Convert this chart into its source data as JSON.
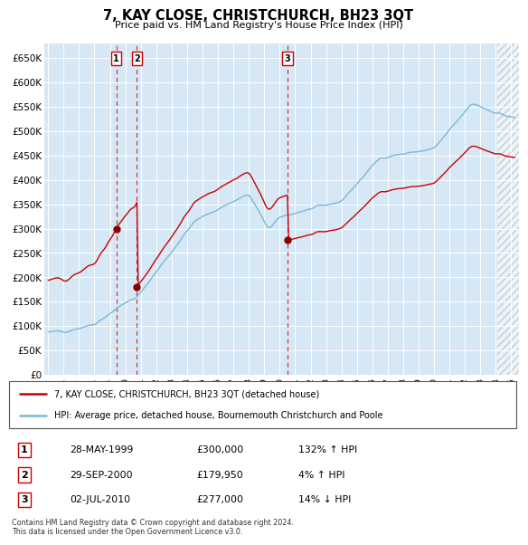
{
  "title": "7, KAY CLOSE, CHRISTCHURCH, BH23 3QT",
  "subtitle": "Price paid vs. HM Land Registry's House Price Index (HPI)",
  "ylabel_ticks": [
    "£0",
    "£50K",
    "£100K",
    "£150K",
    "£200K",
    "£250K",
    "£300K",
    "£350K",
    "£400K",
    "£450K",
    "£500K",
    "£550K",
    "£600K",
    "£650K"
  ],
  "ytick_values": [
    0,
    50000,
    100000,
    150000,
    200000,
    250000,
    300000,
    350000,
    400000,
    450000,
    500000,
    550000,
    600000,
    650000
  ],
  "xmin": 1994.75,
  "xmax": 2025.5,
  "ymin": 0,
  "ymax": 680000,
  "sale_dates": [
    1999.41,
    2000.75,
    2010.5
  ],
  "sale_prices": [
    300000,
    179950,
    277000
  ],
  "sale_labels": [
    "1",
    "2",
    "3"
  ],
  "legend_line1": "7, KAY CLOSE, CHRISTCHURCH, BH23 3QT (detached house)",
  "legend_line2": "HPI: Average price, detached house, Bournemouth Christchurch and Poole",
  "table_rows": [
    [
      "1",
      "28-MAY-1999",
      "£300,000",
      "132% ↑ HPI"
    ],
    [
      "2",
      "29-SEP-2000",
      "£179,950",
      "4% ↑ HPI"
    ],
    [
      "3",
      "02-JUL-2010",
      "£277,000",
      "14% ↓ HPI"
    ]
  ],
  "footer": "Contains HM Land Registry data © Crown copyright and database right 2024.\nThis data is licensed under the Open Government Licence v3.0.",
  "hpi_color": "#7ab8d9",
  "price_color": "#cc0000",
  "sale_dot_color": "#8b0000",
  "vline_color": "#cc0000",
  "bg_color": "#d6e8f5",
  "grid_color": "#ffffff",
  "label_box_color": "#cc0000",
  "hatch_start": 2024.083,
  "future_shade": "#e0e0e0"
}
